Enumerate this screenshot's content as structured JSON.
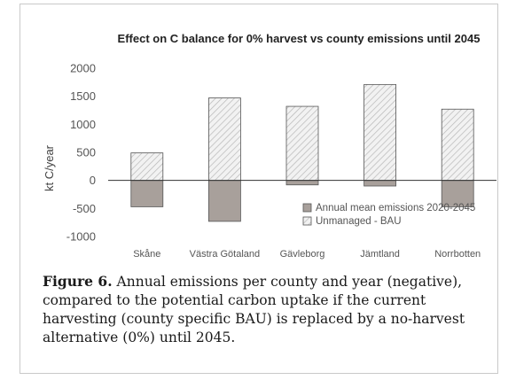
{
  "chart_data": {
    "type": "bar",
    "title": "Effect on C balance for 0% harvest vs county emissions until 2045",
    "xlabel": "",
    "ylabel": "kt C/year",
    "ylim": [
      -1000,
      2000
    ],
    "yticks": [
      2000,
      1500,
      1000,
      500,
      0,
      -500,
      -1000
    ],
    "grid": false,
    "legend_position": "bottom-right",
    "categories": [
      "Skåne",
      "Västra Götaland",
      "Gävleborg",
      "Jämtland",
      "Norrbotten"
    ],
    "series": [
      {
        "name": "Annual mean emissions 2020-2045",
        "values": [
          -470,
          -730,
          -80,
          -100,
          -470
        ],
        "color": "#a8a09b",
        "pattern": "solid"
      },
      {
        "name": "Unmanaged - BAU",
        "values": [
          490,
          1470,
          1320,
          1710,
          1270
        ],
        "color": "#eeeeee",
        "pattern": "diagonal-hatch"
      }
    ]
  },
  "caption": {
    "label": "Figure 6.",
    "text": " Annual emissions per county and year (negative), compared to the potential carbon uptake if the current harvesting (county specific BAU) is replaced by a no-harvest alternative (0%) until 2045."
  }
}
